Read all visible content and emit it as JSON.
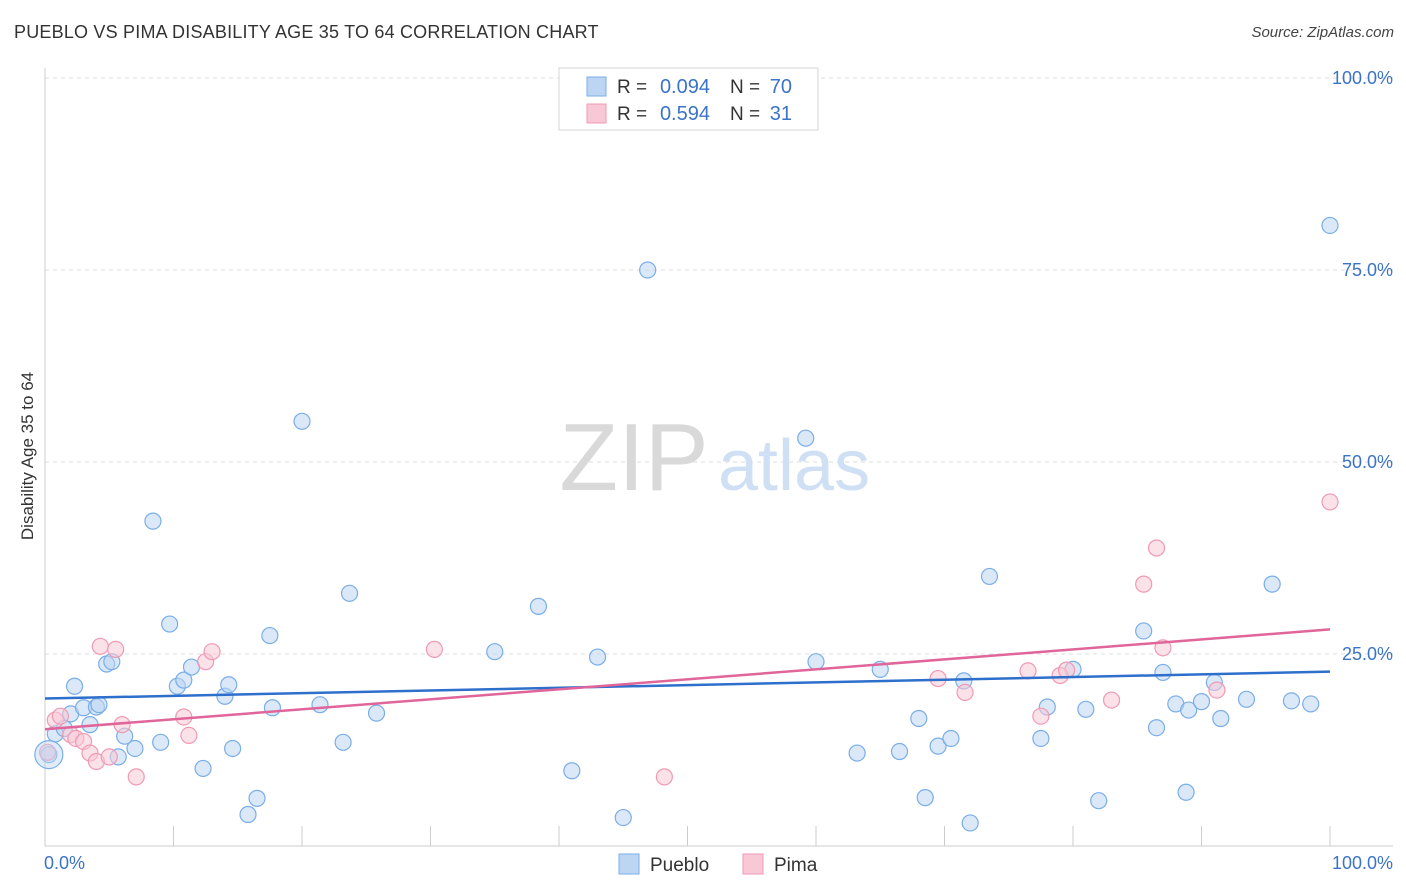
{
  "chart_data": {
    "type": "scatter",
    "title": "PUEBLO VS PIMA DISABILITY AGE 35 TO 64 CORRELATION CHART",
    "source": "Source: ZipAtlas.com",
    "ylabel": "Disability Age 35 to 64",
    "xlabel": "",
    "xlim": [
      0,
      100
    ],
    "ylim": [
      0,
      100
    ],
    "x_tick_labels": [
      "0.0%",
      "100.0%"
    ],
    "y_ticks": [
      25,
      50,
      75,
      100
    ],
    "y_tick_labels": [
      "25.0%",
      "50.0%",
      "75.0%",
      "100.0%"
    ],
    "watermark": {
      "zip": "ZIP",
      "atlas": "atlas"
    },
    "legend_stats": [
      {
        "r_label": "R =",
        "r_value": "0.094",
        "n_label": "N =",
        "n_value": "70"
      },
      {
        "r_label": "R =",
        "r_value": "0.594",
        "n_label": "N =",
        "n_value": "31"
      }
    ],
    "series": [
      {
        "name": "Pueblo",
        "color": "#7aaee8",
        "fill": "#bcd5f3",
        "trend_color": "#2d6fcb",
        "trend": [
          [
            0,
            19.2
          ],
          [
            100,
            22.7
          ]
        ],
        "points": [
          [
            0.3,
            11.9
          ],
          [
            0.8,
            14.6
          ],
          [
            1.5,
            15.3
          ],
          [
            2,
            17.2
          ],
          [
            2.3,
            20.8
          ],
          [
            3,
            18.0
          ],
          [
            3.5,
            15.8
          ],
          [
            4,
            18.1
          ],
          [
            4.2,
            18.4
          ],
          [
            4.8,
            23.7
          ],
          [
            5.2,
            24.0
          ],
          [
            5.7,
            11.6
          ],
          [
            6.2,
            14.3
          ],
          [
            7,
            12.7
          ],
          [
            8.4,
            42.3
          ],
          [
            9,
            13.5
          ],
          [
            9.7,
            28.9
          ],
          [
            10.3,
            20.8
          ],
          [
            10.8,
            21.6
          ],
          [
            11.4,
            23.3
          ],
          [
            12.3,
            10.1
          ],
          [
            14,
            19.5
          ],
          [
            14.3,
            21.0
          ],
          [
            14.6,
            12.7
          ],
          [
            15.8,
            4.1
          ],
          [
            16.5,
            6.2
          ],
          [
            17.5,
            27.4
          ],
          [
            17.7,
            18.0
          ],
          [
            20,
            55.3
          ],
          [
            21.4,
            18.4
          ],
          [
            23.2,
            13.5
          ],
          [
            23.7,
            32.9
          ],
          [
            25.8,
            17.3
          ],
          [
            35,
            25.3
          ],
          [
            38.4,
            31.2
          ],
          [
            41,
            9.8
          ],
          [
            43,
            24.6
          ],
          [
            45,
            3.7
          ],
          [
            46.9,
            75.0
          ],
          [
            59.2,
            53.1
          ],
          [
            60,
            24.0
          ],
          [
            63.2,
            12.1
          ],
          [
            65,
            23.0
          ],
          [
            66.5,
            12.3
          ],
          [
            68,
            16.6
          ],
          [
            68.5,
            6.3
          ],
          [
            69.5,
            13.0
          ],
          [
            70.5,
            14.0
          ],
          [
            71.5,
            21.5
          ],
          [
            72,
            3.0
          ],
          [
            73.5,
            35.1
          ],
          [
            77.5,
            14.0
          ],
          [
            78,
            18.1
          ],
          [
            80,
            23.0
          ],
          [
            81,
            17.8
          ],
          [
            82,
            5.9
          ],
          [
            85.5,
            28.0
          ],
          [
            86.5,
            15.4
          ],
          [
            87,
            22.6
          ],
          [
            88,
            18.5
          ],
          [
            88.8,
            7.0
          ],
          [
            89,
            17.7
          ],
          [
            90,
            18.8
          ],
          [
            91,
            21.3
          ],
          [
            91.5,
            16.6
          ],
          [
            93.5,
            19.1
          ],
          [
            95.5,
            34.1
          ],
          [
            97,
            18.9
          ],
          [
            98.5,
            18.5
          ],
          [
            100,
            80.8
          ]
        ]
      },
      {
        "name": "Pima",
        "color": "#f09ab4",
        "fill": "#f8c8d6",
        "trend_color": "#e0659a",
        "trend": [
          [
            0,
            15.2
          ],
          [
            100,
            28.2
          ]
        ],
        "points": [
          [
            0.8,
            16.4
          ],
          [
            1.2,
            16.9
          ],
          [
            2,
            14.5
          ],
          [
            2.4,
            14.0
          ],
          [
            3,
            13.6
          ],
          [
            3.5,
            12.1
          ],
          [
            4,
            11.0
          ],
          [
            4.3,
            26.0
          ],
          [
            5,
            11.6
          ],
          [
            5.5,
            25.6
          ],
          [
            6,
            15.8
          ],
          [
            7.1,
            9.0
          ],
          [
            10.8,
            16.8
          ],
          [
            11.2,
            14.4
          ],
          [
            12.5,
            24.0
          ],
          [
            13,
            25.3
          ],
          [
            30.3,
            25.6
          ],
          [
            48.2,
            9.0
          ],
          [
            69.5,
            21.8
          ],
          [
            71.6,
            20.0
          ],
          [
            76.5,
            22.8
          ],
          [
            77.5,
            16.9
          ],
          [
            79,
            22.2
          ],
          [
            79.5,
            22.9
          ],
          [
            83,
            19.0
          ],
          [
            85.5,
            34.1
          ],
          [
            86.5,
            38.8
          ],
          [
            87,
            25.8
          ],
          [
            91.2,
            20.3
          ],
          [
            100,
            44.8
          ],
          [
            0.2,
            12.2
          ]
        ]
      }
    ]
  }
}
